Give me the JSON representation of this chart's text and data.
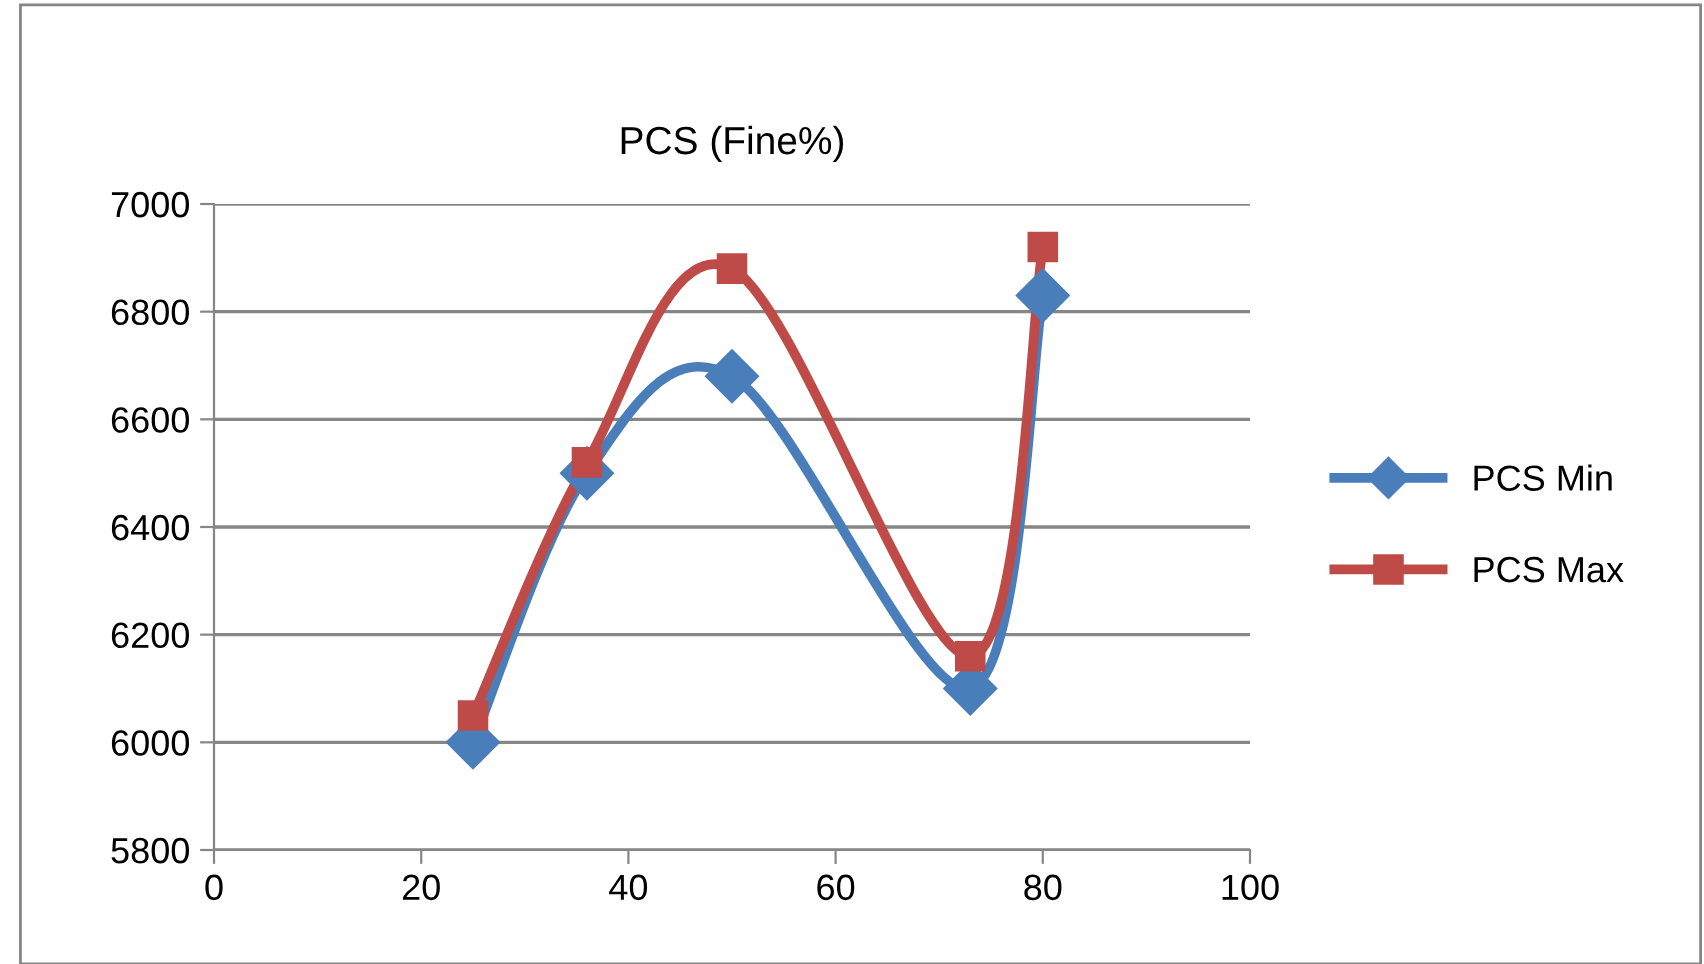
{
  "chart_data": {
    "type": "line",
    "title": "PCS (Fine%)",
    "x": [
      25,
      36,
      50,
      73,
      80
    ],
    "series": [
      {
        "name": "PCS Min",
        "color": "#4a7ebb",
        "marker": "diamond",
        "values": [
          6000,
          6500,
          6680,
          6100,
          6830
        ]
      },
      {
        "name": "PCS Max",
        "color": "#be4b48",
        "marker": "square",
        "values": [
          6050,
          6520,
          6880,
          6160,
          6920
        ]
      }
    ],
    "xlim": [
      0,
      100
    ],
    "xticks": [
      0,
      20,
      40,
      60,
      80,
      100
    ],
    "ylim": [
      5800,
      7000
    ],
    "yticks": [
      5800,
      6000,
      6200,
      6400,
      6600,
      6800,
      7000
    ],
    "grid": "y",
    "legend": "right",
    "line_style": "solid"
  }
}
